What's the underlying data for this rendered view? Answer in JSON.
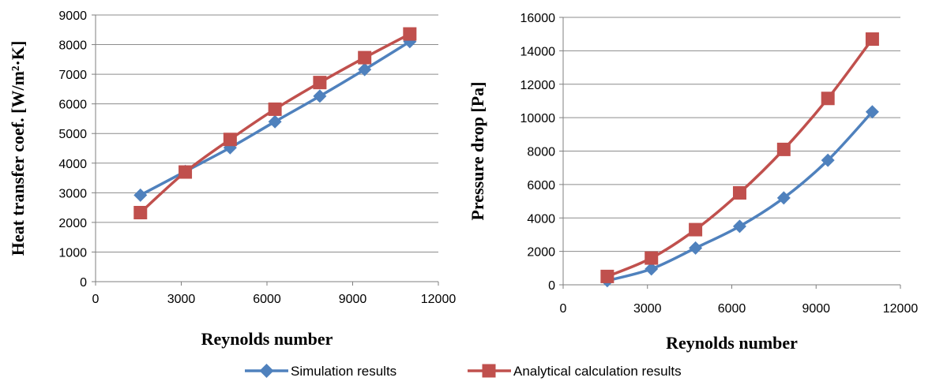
{
  "chart_data": [
    {
      "type": "line",
      "xlabel": "Reynolds number",
      "ylabel": "Heat transfer coef. [W/m²·K]",
      "xlim": [
        0,
        12000
      ],
      "ylim": [
        0,
        9000
      ],
      "xticks": [
        0,
        3000,
        6000,
        9000,
        12000
      ],
      "yticks": [
        0,
        1000,
        2000,
        3000,
        4000,
        5000,
        6000,
        7000,
        8000,
        9000
      ],
      "grid": "horizontal",
      "series": [
        {
          "name": "Simulation results",
          "color": "#4F81BD",
          "marker": "diamond",
          "x": [
            1570,
            3140,
            4710,
            6280,
            7850,
            9420,
            11000
          ],
          "y": [
            2920,
            3720,
            4520,
            5400,
            6260,
            7160,
            8100
          ]
        },
        {
          "name": "Analytical calculation results",
          "color": "#C0504D",
          "marker": "square",
          "x": [
            1570,
            3140,
            4710,
            6280,
            7850,
            9420,
            11000
          ],
          "y": [
            2330,
            3700,
            4800,
            5820,
            6720,
            7560,
            8360
          ]
        }
      ]
    },
    {
      "type": "line",
      "xlabel": "Reynolds number",
      "ylabel": "Pressure drop [Pa]",
      "xlim": [
        0,
        12000
      ],
      "ylim": [
        0,
        16000
      ],
      "xticks": [
        0,
        3000,
        6000,
        9000,
        12000
      ],
      "yticks": [
        0,
        2000,
        4000,
        6000,
        8000,
        10000,
        12000,
        14000,
        16000
      ],
      "grid": "horizontal",
      "series": [
        {
          "name": "Simulation results",
          "color": "#4F81BD",
          "marker": "diamond",
          "x": [
            1570,
            3140,
            4710,
            6280,
            7850,
            9420,
            11000
          ],
          "y": [
            250,
            950,
            2200,
            3500,
            5200,
            7450,
            10350
          ]
        },
        {
          "name": "Analytical calculation results",
          "color": "#C0504D",
          "marker": "square",
          "x": [
            1570,
            3140,
            4710,
            6280,
            7850,
            9420,
            11000
          ],
          "y": [
            500,
            1600,
            3300,
            5500,
            8100,
            11150,
            14700
          ]
        }
      ]
    }
  ],
  "legend": {
    "position": "bottom",
    "items": [
      {
        "label": "Simulation results",
        "color": "#4F81BD",
        "marker": "diamond"
      },
      {
        "label": "Analytical calculation results",
        "color": "#C0504D",
        "marker": "square"
      }
    ]
  }
}
